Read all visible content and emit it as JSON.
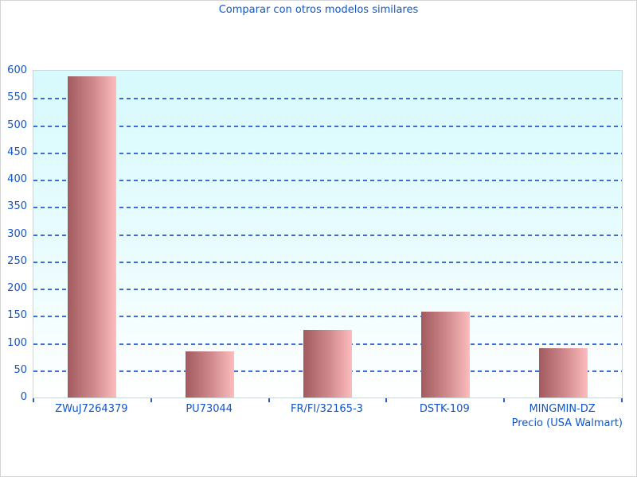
{
  "title": "Comparar con otros modelos similares",
  "chart_data": {
    "type": "bar",
    "title": "Comparar con otros modelos similares",
    "categories": [
      "ZWuJ7264379",
      "PU73044",
      "FR/FI/32165-3",
      "DSTK-109",
      "MINGMIN-DZ"
    ],
    "values": [
      590,
      85,
      124,
      158,
      91
    ],
    "xlabel": "Precio (USA Walmart)",
    "ylabel": "",
    "ylim": [
      0,
      600
    ],
    "ytick_step": 50,
    "yticks": [
      0,
      50,
      100,
      150,
      200,
      250,
      300,
      350,
      400,
      450,
      500,
      550,
      600
    ],
    "grid": "horizontal-dashed",
    "legend": "none"
  },
  "colors": {
    "text_blue": "#1155cc",
    "gridline_blue": "#3465cf",
    "tick_blue": "#2a5fd0",
    "bar_gradient_left": "#a25a5e",
    "bar_gradient_right": "#fcbcbd",
    "plot_bg_top": "#d7fafd",
    "plot_bg_bottom": "#ffffff",
    "plot_border": "#c9d8da",
    "page_border": "#d3d3d3"
  }
}
